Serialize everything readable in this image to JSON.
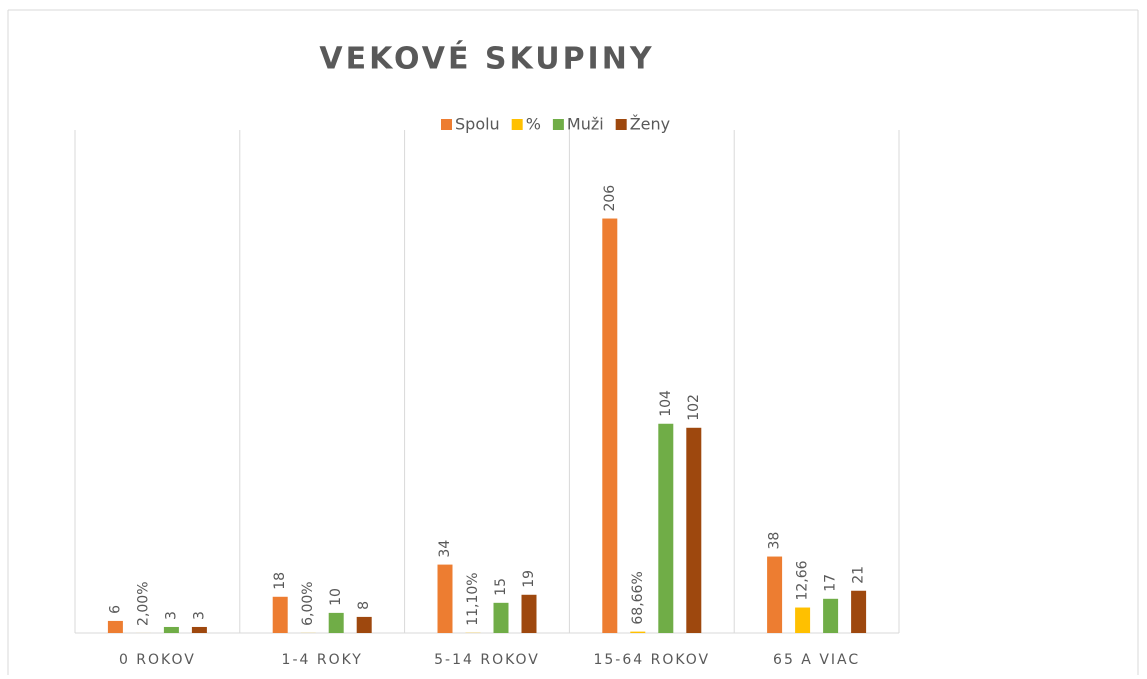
{
  "chart_data": {
    "type": "bar",
    "title": "VEKOVÉ SKUPINY",
    "categories": [
      "0 ROKOV",
      "1-4 ROKY",
      "5-14 ROKOV",
      "15-64 ROKOV",
      "65 A VIAC"
    ],
    "series": [
      {
        "name": "Spolu",
        "color": "#ed7d31",
        "values": [
          6,
          18,
          34,
          206,
          38
        ]
      },
      {
        "name": "%",
        "color": "#ffc000",
        "values": [
          0.02,
          0.06,
          0.111,
          0.6866,
          12.66
        ],
        "value_labels": [
          "2,00%",
          "6,00%",
          "11,10%",
          "68,66%",
          "12,66"
        ]
      },
      {
        "name": "Muži",
        "color": "#70ad47",
        "values": [
          3,
          10,
          15,
          104,
          17
        ]
      },
      {
        "name": "Ženy",
        "color": "#9e480e",
        "values": [
          3,
          8,
          19,
          102,
          21
        ]
      }
    ],
    "ylim": [
      0,
      250
    ],
    "grid": true,
    "legend": "top"
  }
}
